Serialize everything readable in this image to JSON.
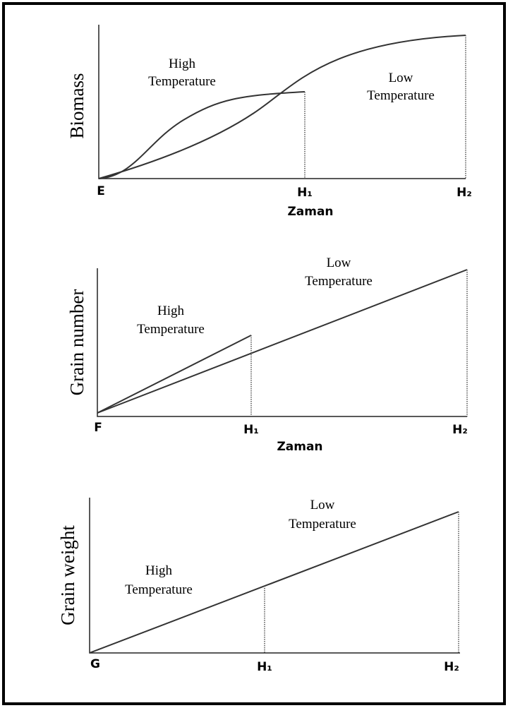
{
  "panels": [
    {
      "y_label": "Biomass",
      "x_label": "Zaman",
      "origin": "E",
      "h1": "H₁",
      "h2": "H₂",
      "high": [
        "High",
        "Temperature"
      ],
      "low": [
        "Low",
        "Temperature"
      ]
    },
    {
      "y_label": "Grain number",
      "x_label": "Zaman",
      "origin": "F",
      "h1": "H₁",
      "h2": "H₂",
      "high": [
        "High",
        "Temperature"
      ],
      "low": [
        "Low",
        "Temperature"
      ]
    },
    {
      "y_label": "Grain weight",
      "origin": "G",
      "h1": "H₁",
      "h2": "H₂",
      "high": [
        "High",
        "Temperature"
      ],
      "low": [
        "Low",
        "Temperature"
      ]
    }
  ]
}
